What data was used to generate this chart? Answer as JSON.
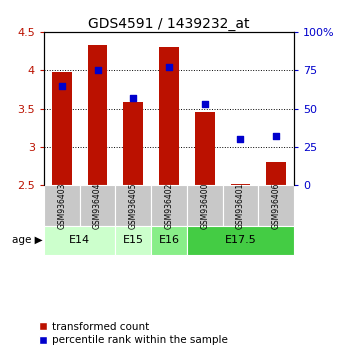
{
  "title": "GDS4591 / 1439232_at",
  "samples": [
    "GSM936403",
    "GSM936404",
    "GSM936405",
    "GSM936402",
    "GSM936400",
    "GSM936401",
    "GSM936406"
  ],
  "transformed_count": [
    3.97,
    4.33,
    3.59,
    4.3,
    3.45,
    2.52,
    2.8
  ],
  "percentile_rank": [
    65,
    75,
    57,
    77,
    53,
    30,
    32
  ],
  "ylim_left": [
    2.5,
    4.5
  ],
  "ylim_right": [
    0,
    100
  ],
  "yticks_left": [
    2.5,
    3.0,
    3.5,
    4.0,
    4.5
  ],
  "yticks_right": [
    0,
    25,
    50,
    75,
    100
  ],
  "ytick_labels_right": [
    "0",
    "25",
    "50",
    "75",
    "100%"
  ],
  "bar_color": "#bb1100",
  "dot_color": "#0000cc",
  "age_groups_info": [
    {
      "label": "E14",
      "start": 0,
      "end": 1,
      "color": "#ccffcc"
    },
    {
      "label": "E15",
      "start": 2,
      "end": 2,
      "color": "#ccffcc"
    },
    {
      "label": "E16",
      "start": 3,
      "end": 3,
      "color": "#88ee88"
    },
    {
      "label": "E17.5",
      "start": 4,
      "end": 6,
      "color": "#44cc44"
    }
  ],
  "legend_bar_label": "transformed count",
  "legend_dot_label": "percentile rank within the sample",
  "background_color": "#ffffff",
  "bar_bottom": 2.5,
  "age_label": "age",
  "sample_box_color": "#c8c8c8",
  "grid_yticks": [
    3.0,
    3.5,
    4.0
  ]
}
